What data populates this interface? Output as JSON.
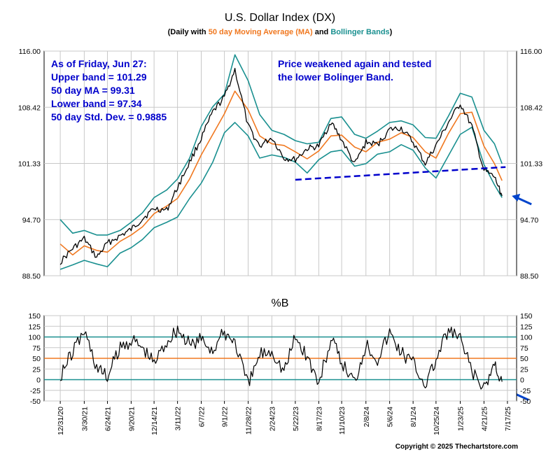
{
  "chart_data": [
    {
      "type": "line",
      "title": "U.S. Dollar Index (DX)",
      "subtitle": {
        "prefix": "(Daily with ",
        "ma": "50 day Moving Average (MA)",
        "mid": " and ",
        "bands": "Bollinger Bands",
        "suffix": ")"
      },
      "ylim": [
        88.5,
        116.0
      ],
      "yticks": [
        "116.00",
        "108.42",
        "101.33",
        "94.70",
        "88.50"
      ],
      "grid": true,
      "colors": {
        "price": "#000000",
        "ma": "#f07820",
        "bands": "#1a9090",
        "support": "#0000cc",
        "arrow": "#0044cc"
      },
      "x_dates": [
        "2020-12-31",
        "2021-02-15",
        "2021-03-30",
        "2021-05-15",
        "2021-06-24",
        "2021-08-10",
        "2021-09-20",
        "2021-11-01",
        "2021-12-14",
        "2022-01-30",
        "2022-03-11",
        "2022-04-25",
        "2022-06-07",
        "2022-07-20",
        "2022-09-01",
        "2022-10-10",
        "2022-11-28",
        "2023-01-10",
        "2023-02-24",
        "2023-04-10",
        "2023-05-22",
        "2023-07-05",
        "2023-08-17",
        "2023-10-01",
        "2023-11-10",
        "2023-12-28",
        "2024-02-08",
        "2024-03-22",
        "2024-05-06",
        "2024-06-18",
        "2024-08-01",
        "2024-09-15",
        "2024-10-25",
        "2024-12-10",
        "2025-01-23",
        "2025-03-07",
        "2025-04-21",
        "2025-05-30",
        "2025-06-27"
      ],
      "series": [
        {
          "name": "Price",
          "values": [
            90.0,
            91.5,
            92.6,
            90.5,
            92.1,
            92.9,
            93.6,
            94.8,
            96.0,
            95.8,
            98.5,
            101.5,
            104.5,
            107.8,
            109.8,
            113.5,
            106.0,
            103.5,
            104.6,
            102.0,
            101.8,
            103.2,
            103.5,
            106.6,
            104.3,
            101.2,
            104.0,
            103.7,
            105.6,
            105.8,
            104.0,
            101.3,
            103.6,
            106.5,
            108.9,
            106.0,
            100.5,
            99.7,
            97.5
          ]
        },
        {
          "name": "50 day Moving Average (MA)",
          "values": [
            92.0,
            90.8,
            91.8,
            91.3,
            91.1,
            92.3,
            93.0,
            93.9,
            95.4,
            96.3,
            97.2,
            99.5,
            102.4,
            105.0,
            107.6,
            110.6,
            108.1,
            104.8,
            103.8,
            103.6,
            102.8,
            101.9,
            102.9,
            104.8,
            104.9,
            103.4,
            102.8,
            104.0,
            104.4,
            105.2,
            104.6,
            102.8,
            102.0,
            105.1,
            107.6,
            107.8,
            103.5,
            101.3,
            99.3
          ]
        },
        {
          "name": "Upper Bollinger Band",
          "values": [
            94.7,
            93.2,
            93.5,
            93.0,
            93.0,
            93.5,
            94.4,
            95.5,
            97.3,
            98.2,
            99.5,
            102.0,
            106.0,
            108.5,
            110.2,
            115.5,
            112.0,
            107.5,
            105.5,
            105.0,
            104.2,
            103.8,
            104.0,
            107.0,
            107.2,
            105.0,
            104.5,
            105.4,
            106.5,
            106.7,
            106.2,
            104.6,
            104.5,
            107.3,
            110.3,
            109.8,
            105.5,
            103.8,
            101.3
          ]
        },
        {
          "name": "Lower Bollinger Band",
          "values": [
            89.2,
            89.7,
            90.2,
            89.8,
            89.5,
            91.0,
            91.6,
            92.5,
            93.8,
            94.4,
            95.0,
            97.2,
            99.0,
            101.5,
            105.2,
            106.5,
            104.8,
            102.0,
            102.4,
            102.1,
            101.5,
            100.2,
            101.8,
            102.8,
            103.0,
            101.0,
            101.3,
            102.5,
            102.8,
            103.7,
            103.0,
            100.8,
            99.6,
            102.3,
            105.0,
            105.9,
            101.2,
            98.8,
            97.3
          ]
        }
      ],
      "support_line": {
        "x": [
          "2023-05-22",
          "2025-07-10"
        ],
        "y": [
          99.4,
          100.9
        ]
      },
      "annotations": {
        "stats": [
          "As of Friday, Jun 27:",
          "Upper band = 101.29",
          "50 day MA = 99.31",
          "Lower band = 97.34",
          "50 day Std. Dev. = 0.9885"
        ],
        "comment": [
          "Price weakened again and tested",
          "the lower Bolinger Band."
        ]
      }
    },
    {
      "type": "line",
      "title": "%B",
      "ylim": [
        -50,
        150
      ],
      "yticks": [
        "150",
        "125",
        "100",
        "75",
        "50",
        "25",
        "0",
        "-25",
        "-50"
      ],
      "reference_lines": [
        100,
        50,
        0
      ],
      "x_dates": [
        "2020-12-31",
        "2021-02-10",
        "2021-03-30",
        "2021-05-15",
        "2021-06-24",
        "2021-08-05",
        "2021-09-20",
        "2021-11-01",
        "2021-12-14",
        "2022-01-30",
        "2022-03-11",
        "2022-04-25",
        "2022-06-07",
        "2022-07-20",
        "2022-09-01",
        "2022-10-10",
        "2022-11-28",
        "2023-01-10",
        "2023-02-24",
        "2023-04-10",
        "2023-05-22",
        "2023-07-05",
        "2023-08-17",
        "2023-10-01",
        "2023-11-10",
        "2023-12-28",
        "2024-02-08",
        "2024-03-22",
        "2024-05-06",
        "2024-06-18",
        "2024-08-01",
        "2024-09-15",
        "2024-10-25",
        "2024-12-10",
        "2025-01-23",
        "2025-03-07",
        "2025-04-21",
        "2025-05-30",
        "2025-06-27"
      ],
      "series": [
        {
          "name": "%B",
          "values": [
            10,
            60,
            115,
            30,
            5,
            70,
            95,
            75,
            40,
            90,
            120,
            80,
            95,
            70,
            110,
            90,
            -15,
            60,
            70,
            20,
            100,
            55,
            -10,
            95,
            40,
            -5,
            85,
            50,
            110,
            65,
            40,
            -10,
            45,
            115,
            95,
            20,
            -25,
            40,
            -5
          ]
        }
      ],
      "x_tick_labels": [
        "12/31/20",
        "3/30/21",
        "6/24/21",
        "9/20/21",
        "12/14/21",
        "3/11/22",
        "6/7/22",
        "9/1/22",
        "11/28/22",
        "2/24/23",
        "5/22/23",
        "8/17/23",
        "11/10/23",
        "2/8/24",
        "5/6/24",
        "8/1/24",
        "10/25/24",
        "1/23/25",
        "4/21/25",
        "7/17/25"
      ],
      "x_tick_dates": [
        "2020-12-31",
        "2021-03-30",
        "2021-06-24",
        "2021-09-20",
        "2021-12-14",
        "2022-03-11",
        "2022-06-07",
        "2022-09-01",
        "2022-11-28",
        "2023-02-24",
        "2023-05-22",
        "2023-08-17",
        "2023-11-10",
        "2024-02-08",
        "2024-05-06",
        "2024-08-01",
        "2024-10-25",
        "2025-01-23",
        "2025-04-21",
        "2025-07-17"
      ]
    }
  ],
  "copyright": "Copyright © 2025 Thechartstore.com"
}
